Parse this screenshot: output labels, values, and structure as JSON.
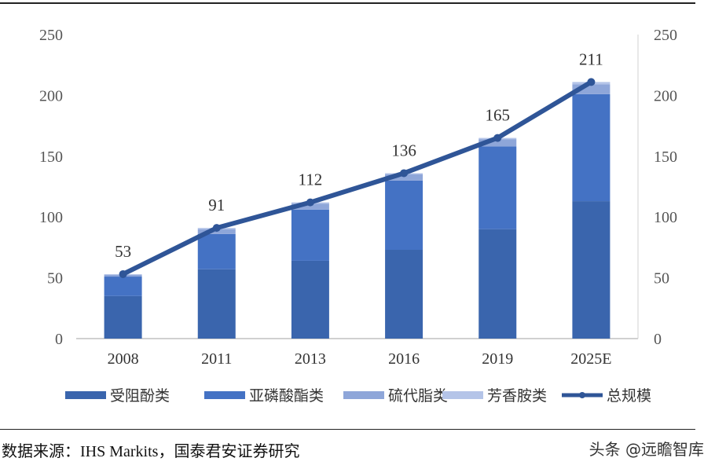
{
  "chart_data": {
    "type": "bar",
    "stacked": true,
    "categories": [
      "2008",
      "2011",
      "2013",
      "2016",
      "2019",
      "2025E"
    ],
    "series": [
      {
        "name": "受阻酚类",
        "values": [
          35,
          57,
          64,
          73,
          90,
          113
        ],
        "color": "#3a65ad"
      },
      {
        "name": "亚磷酸酯类",
        "values": [
          16,
          29,
          42,
          57,
          68,
          88
        ],
        "color": "#4472c4"
      },
      {
        "name": "硫代脂类",
        "values": [
          1.5,
          4,
          5,
          5,
          6,
          8
        ],
        "color": "#8ea6d9"
      },
      {
        "name": "芳香胺类",
        "values": [
          0.5,
          1,
          1,
          1,
          1,
          2
        ],
        "color": "#b4c4e8"
      }
    ],
    "line": {
      "name": "总规模",
      "values": [
        53,
        91,
        112,
        136,
        165,
        211
      ],
      "color": "#2f5597"
    },
    "ylim": [
      0,
      250
    ],
    "yticks": [
      "0",
      "50",
      "100",
      "150",
      "200",
      "250"
    ],
    "y2ticks": [
      "0",
      "50",
      "100",
      "150",
      "200",
      "250"
    ],
    "grid": false,
    "legend": "bottom"
  },
  "source": "数据来源：IHS Markits，国泰君安证券研究",
  "watermark": "头条 @远瞻智库"
}
